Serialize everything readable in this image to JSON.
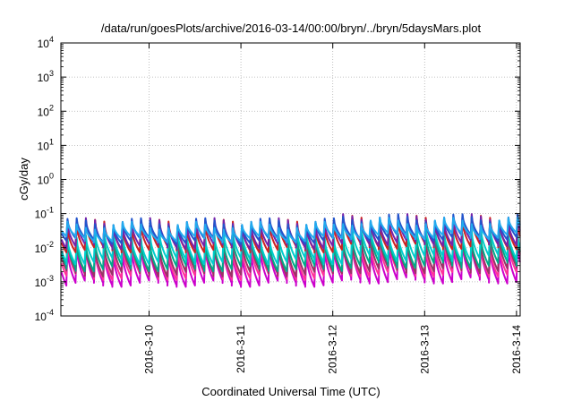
{
  "chart_data": {
    "type": "line",
    "title": "/data/run/goesPlots/archive/2016-03-14/00:00/bryn/../bryn/5daysMars.plot",
    "xlabel": "Coordinated Universal Time (UTC)",
    "ylabel": "cGy/day",
    "yscale": "log",
    "ylim_exponent": [
      -4,
      4
    ],
    "y_tick_labels": [
      {
        "base": "10",
        "exp": "4"
      },
      {
        "base": "10",
        "exp": "3"
      },
      {
        "base": "10",
        "exp": "2"
      },
      {
        "base": "10",
        "exp": "1"
      },
      {
        "base": "10",
        "exp": "0"
      },
      {
        "base": "10",
        "exp": "-1"
      },
      {
        "base": "10",
        "exp": "-2"
      },
      {
        "base": "10",
        "exp": "-3"
      },
      {
        "base": "10",
        "exp": "-4"
      }
    ],
    "x_ticks": [
      "2016-3-10",
      "2016-3-11",
      "2016-3-12",
      "2016-3-13",
      "2016-3-14"
    ],
    "xlim_days": [
      9.04,
      14.04
    ],
    "grid": true,
    "cycles_per_day": 10,
    "series": [
      {
        "color": "#cc00cc",
        "peak_exp": -2.05,
        "trough_exp": -3.05
      },
      {
        "color": "#ff3399",
        "peak_exp": -1.95,
        "trough_exp": -2.85
      },
      {
        "color": "#993366",
        "peak_exp": -1.85,
        "trough_exp": -2.75
      },
      {
        "color": "#00aa88",
        "peak_exp": -1.75,
        "trough_exp": -2.6
      },
      {
        "color": "#00cccc",
        "peak_exp": -1.6,
        "trough_exp": -2.4
      },
      {
        "color": "#cc2222",
        "peak_exp": -1.3,
        "trough_exp": -2.05
      },
      {
        "color": "#7722aa",
        "peak_exp": -1.25,
        "trough_exp": -1.95
      },
      {
        "color": "#2255cc",
        "peak_exp": -1.25,
        "trough_exp": -1.8
      },
      {
        "color": "#22aaee",
        "peak_exp": -1.35,
        "trough_exp": -1.75
      }
    ]
  }
}
